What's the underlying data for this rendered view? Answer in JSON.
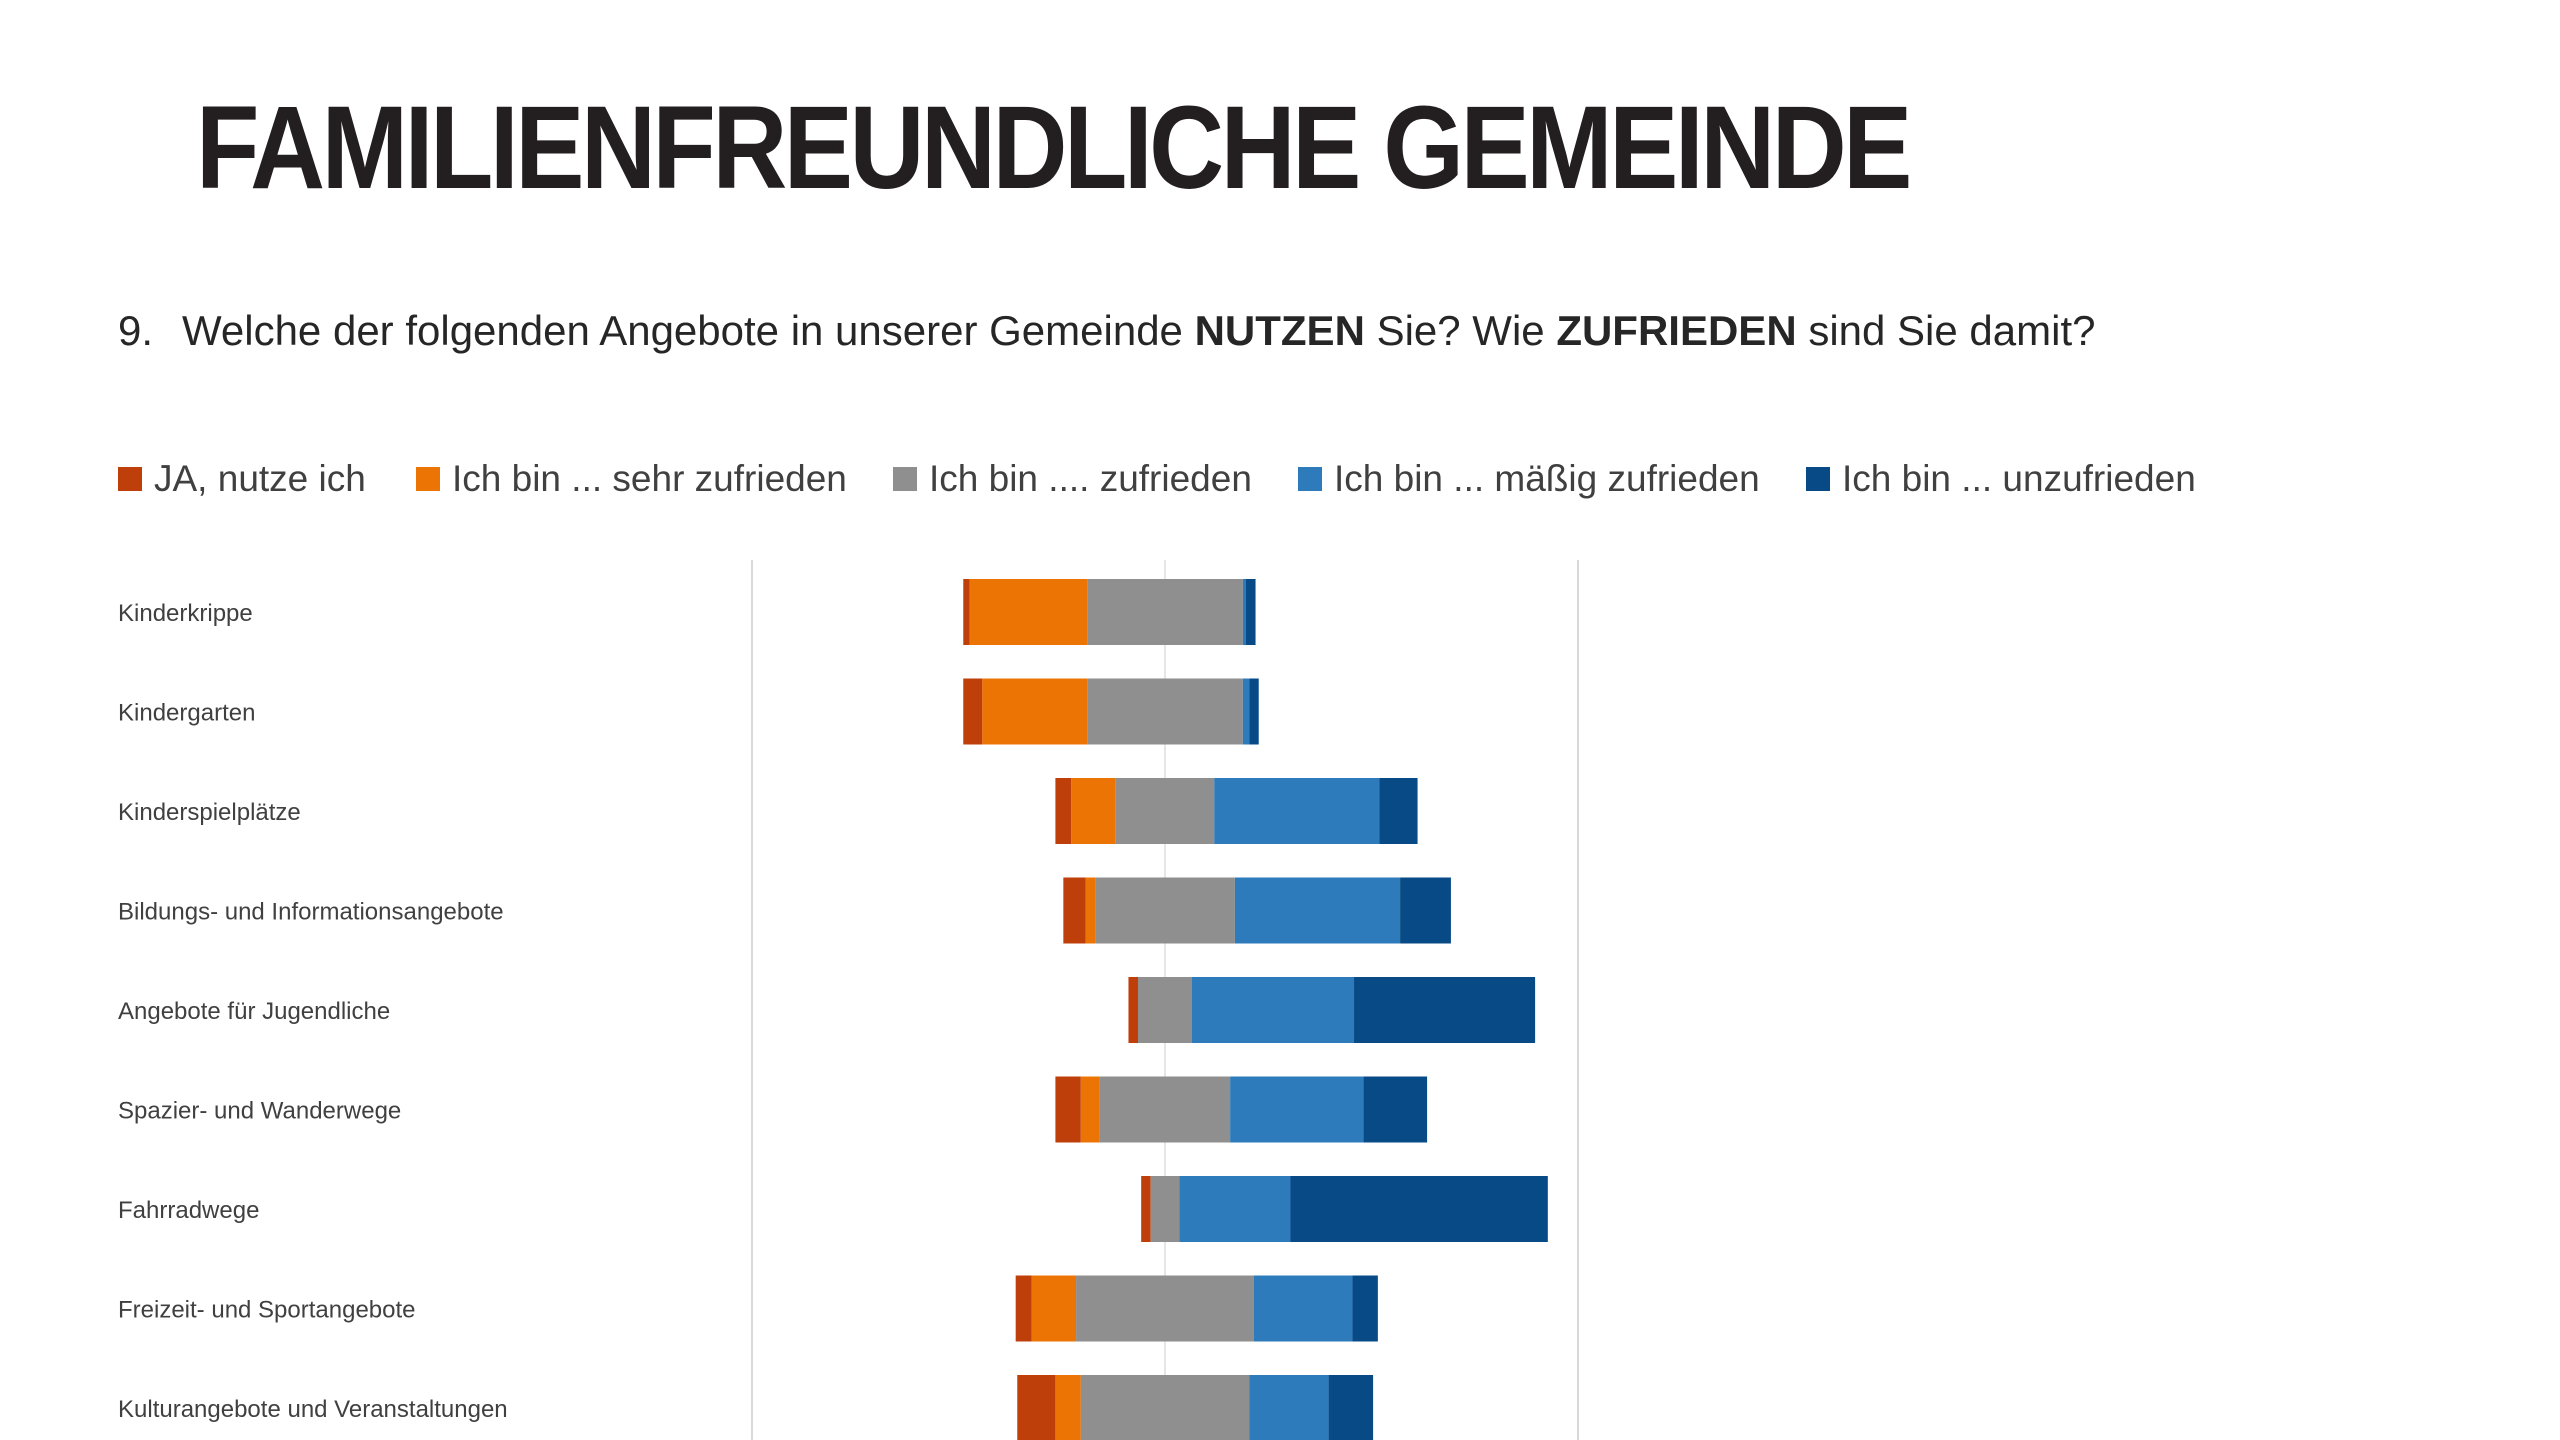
{
  "page": {
    "title": "FAMILIENFREUNDLICHE GEMEINDE",
    "question": {
      "number": "9.",
      "text_1": "Welche der folgenden Angebote in unserer Gemeinde ",
      "bold_1": "NUTZEN",
      "text_2": " Sie? Wie ",
      "bold_2": "ZUFRIEDEN",
      "text_3": " sind Sie damit?"
    }
  },
  "chart_data": {
    "type": "bar",
    "orientation": "horizontal",
    "stacked": "diverging",
    "categories": [
      "Kinderkrippe",
      "Kindergarten",
      "Kinderspielplätze",
      "Bildungs- und Informationsangebote",
      "Angebote für Jugendliche",
      "Spazier- und Wanderwege",
      "Fahrradwege",
      "Freizeit- und Sportangebote",
      "Kulturangebote und Veranstaltungen"
    ],
    "series": [
      {
        "name": "JA, nutze ich",
        "color": "#bf3f0a",
        "values": [
          2,
          6,
          5,
          7,
          3,
          8,
          3,
          5,
          12
        ]
      },
      {
        "name": "Ich bin ... sehr zufrieden",
        "color": "#ec7404",
        "values": [
          37,
          33,
          14,
          3,
          0,
          6,
          0,
          14,
          8
        ]
      },
      {
        "name": "Ich bin .... zufrieden",
        "color": "#8f8f8f",
        "values": [
          49,
          49,
          31,
          44,
          17,
          41,
          9,
          56,
          53
        ]
      },
      {
        "name": "Ich bin ... mäßig zufrieden",
        "color": "#2e7bbb",
        "values": [
          1,
          2,
          52,
          52,
          51,
          42,
          35,
          31,
          25
        ]
      },
      {
        "name": "Ich bin ... unzufrieden",
        "color": "#074a85",
        "values": [
          3,
          3,
          12,
          16,
          57,
          20,
          81,
          8,
          14
        ]
      }
    ],
    "xlim": [
      -130,
      130
    ],
    "grid": true,
    "legend_position": "top"
  }
}
